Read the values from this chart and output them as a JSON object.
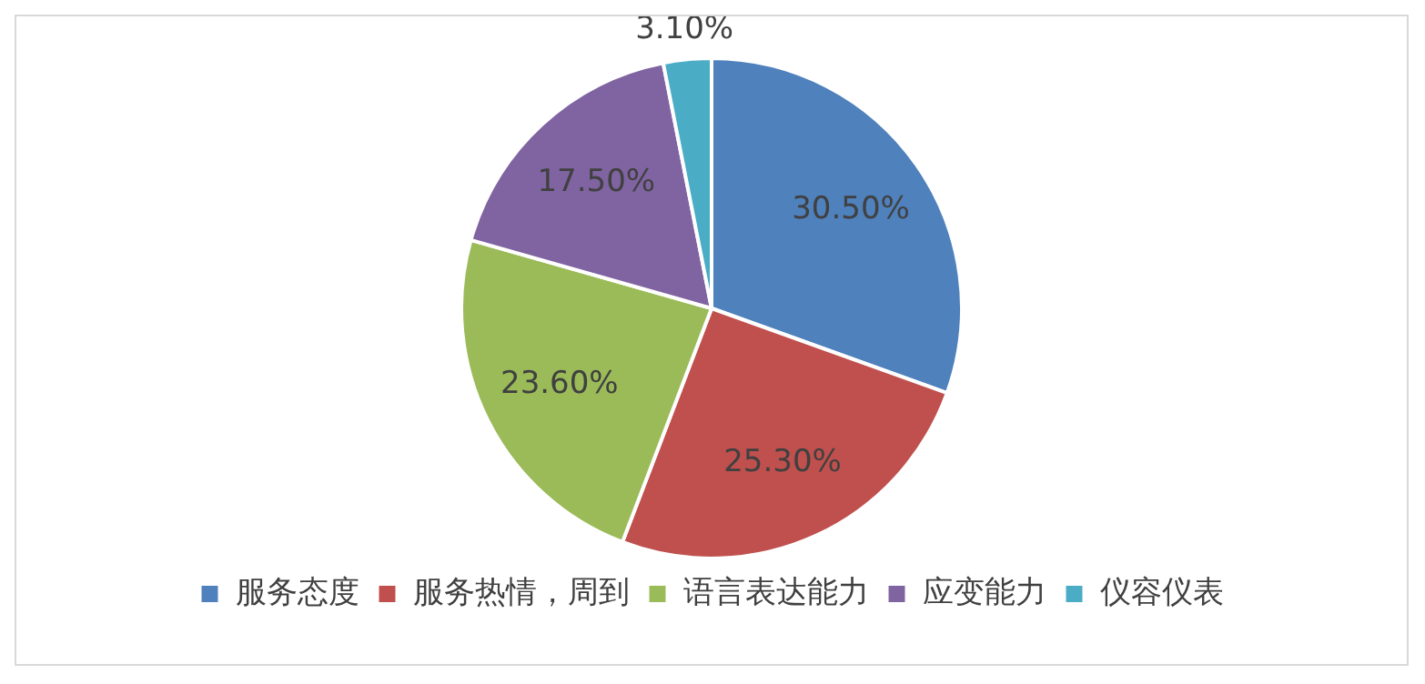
{
  "chart_data": {
    "type": "pie",
    "categories": [
      "服务态度",
      "服务热情，周到",
      "语言表达能力",
      "应变能力",
      "仪容仪表"
    ],
    "values": [
      30.5,
      25.3,
      23.6,
      17.5,
      3.1
    ],
    "colors": [
      "#4f81bd",
      "#c0504d",
      "#9bbb59",
      "#8064a2",
      "#4bacc6"
    ],
    "value_labels": [
      "30.50%",
      "25.30%",
      "23.60%",
      "17.50%",
      "3.10%"
    ],
    "legend": "bottom"
  }
}
